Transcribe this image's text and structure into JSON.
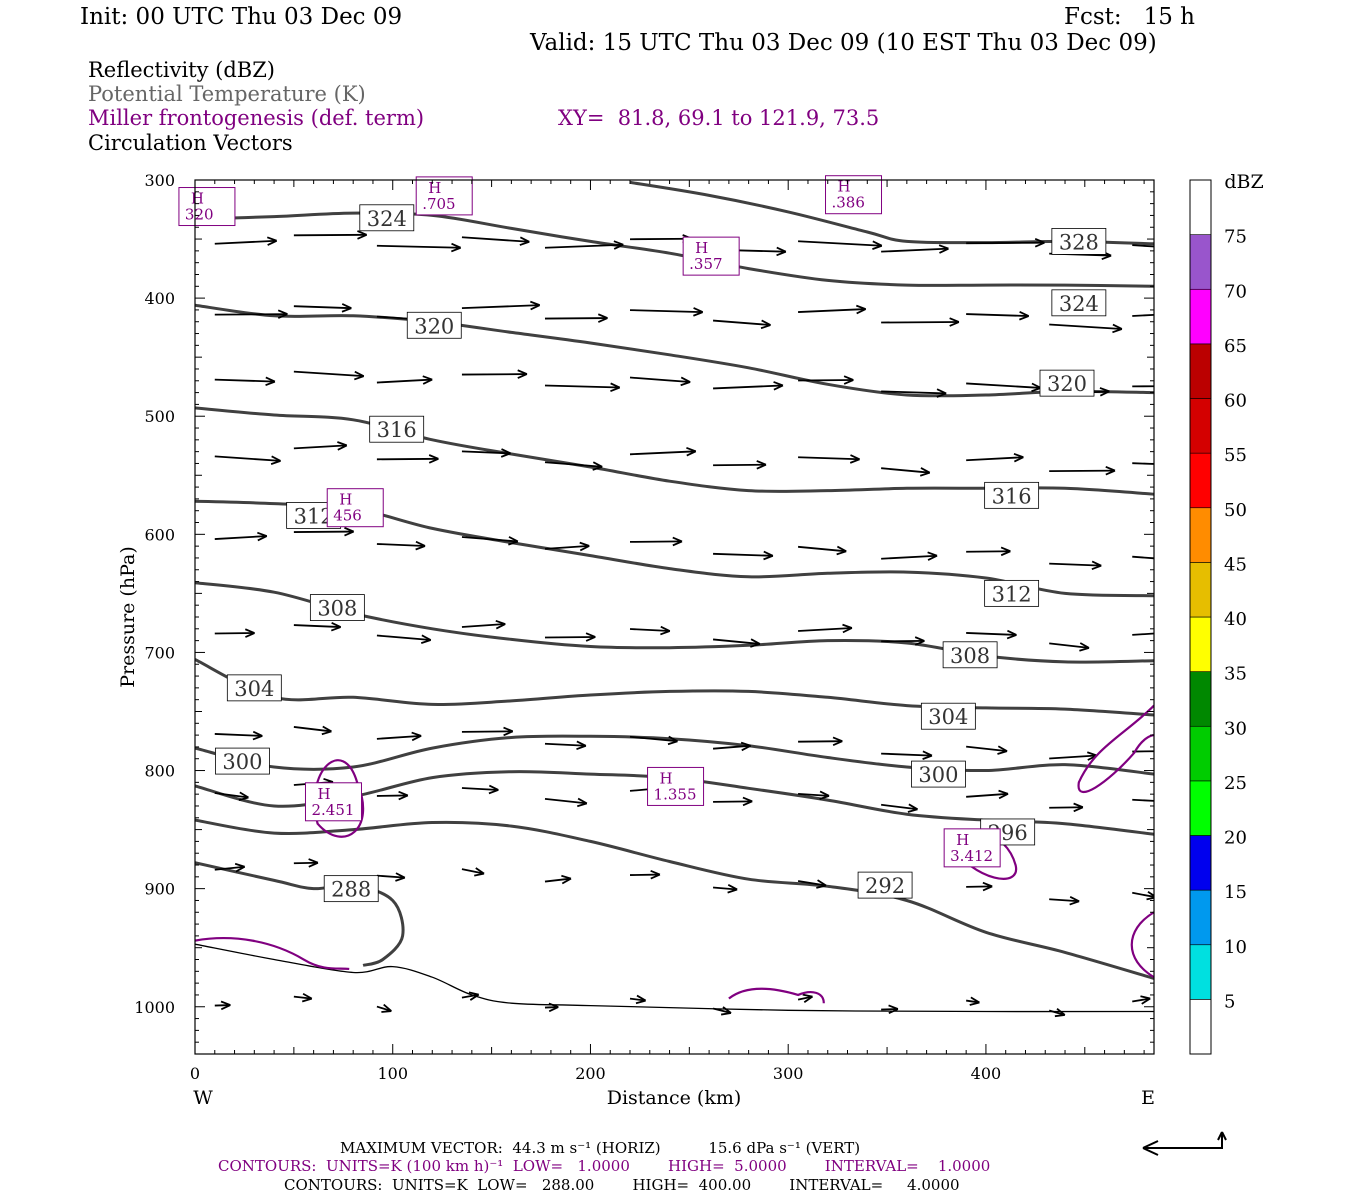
{
  "header": {
    "init": "Init: 00 UTC Thu 03 Dec 09",
    "fcst": "Fcst:   15 h",
    "valid": "Valid: 15 UTC Thu 03 Dec 09 (10 EST Thu 03 Dec 09)"
  },
  "legend": {
    "reflectivity": "Reflectivity (dBZ)",
    "potential_temperature": "Potential Temperature (K)",
    "miller": "Miller frontogenesis (def. term)",
    "xy": "XY=  81.8, 69.1 to 121.9, 73.5",
    "circulation": "Circulation Vectors"
  },
  "footer": {
    "line1": "MAXIMUM VECTOR:  44.3 m s⁻¹ (HORIZ)          15.6 dPa s⁻¹ (VERT)",
    "line2": "CONTOURS:  UNITS=K (100 km h)⁻¹  LOW=   1.0000        HIGH=  5.0000        INTERVAL=    1.0000",
    "line3": "CONTOURS:  UNITS=K  LOW=   288.00        HIGH=  400.00        INTERVAL=     4.0000"
  },
  "colors": {
    "theta": "#404040",
    "miller": "#800080",
    "vector": "#000000"
  },
  "chart_data": {
    "type": "line",
    "subtype": "vertical cross-section",
    "xlabel": "Distance (km)",
    "ylabel": "Pressure (hPa)",
    "xlim": [
      0,
      485
    ],
    "ylim": [
      1040,
      300
    ],
    "y_inverted": true,
    "x_ticks": [
      0,
      100,
      200,
      300,
      400
    ],
    "y_ticks": [
      300,
      400,
      500,
      600,
      700,
      800,
      900,
      1000
    ],
    "x_end_labels": {
      "left": "W",
      "right": "E"
    },
    "colorbar": {
      "title": "dBZ",
      "levels": [
        5,
        10,
        15,
        20,
        25,
        30,
        35,
        40,
        45,
        50,
        55,
        60,
        65,
        70,
        75
      ],
      "colors": [
        "#00e0e0",
        "#0099ee",
        "#0000ee",
        "#00ff00",
        "#00cc00",
        "#008800",
        "#ffff00",
        "#e6be00",
        "#ff8c00",
        "#ff0000",
        "#d40000",
        "#bb0000",
        "#ff00ff",
        "#9955cc",
        "#ffffff"
      ]
    },
    "theta_series": [
      {
        "name": "324",
        "x": [
          0,
          40,
          80,
          120,
          160,
          200,
          240,
          280,
          320,
          360,
          400,
          440,
          485
        ],
        "values": [
          333,
          331,
          328,
          330,
          341,
          352,
          362,
          375,
          385,
          389,
          389,
          389,
          390
        ]
      },
      {
        "name": "328",
        "x": [
          220,
          260,
          300,
          340,
          360,
          400,
          440,
          485
        ],
        "values": [
          302,
          313,
          327,
          344,
          352,
          353,
          352,
          354
        ]
      },
      {
        "name": "320",
        "x": [
          0,
          40,
          80,
          120,
          160,
          200,
          240,
          280,
          320,
          360,
          400,
          440,
          485
        ],
        "values": [
          406,
          415,
          415,
          420,
          429,
          438,
          448,
          459,
          473,
          482,
          482,
          479,
          480
        ]
      },
      {
        "name": "316",
        "x": [
          0,
          40,
          80,
          120,
          160,
          200,
          240,
          280,
          320,
          360,
          400,
          440,
          485
        ],
        "values": [
          493,
          499,
          503,
          520,
          532,
          543,
          555,
          563,
          563,
          561,
          561,
          561,
          566
        ]
      },
      {
        "name": "312",
        "x": [
          0,
          40,
          80,
          120,
          160,
          200,
          240,
          280,
          320,
          360,
          400,
          440,
          485
        ],
        "values": [
          572,
          574,
          578,
          595,
          607,
          618,
          629,
          636,
          633,
          632,
          637,
          650,
          652
        ]
      },
      {
        "name": "308",
        "x": [
          0,
          40,
          80,
          120,
          160,
          200,
          240,
          280,
          320,
          360,
          400,
          440,
          485
        ],
        "values": [
          641,
          649,
          667,
          680,
          689,
          695,
          696,
          694,
          690,
          692,
          703,
          708,
          707
        ]
      },
      {
        "name": "304",
        "x": [
          0,
          40,
          80,
          120,
          160,
          200,
          240,
          280,
          320,
          360,
          400,
          440,
          485
        ],
        "values": [
          706,
          738,
          738,
          744,
          741,
          736,
          733,
          733,
          738,
          745,
          747,
          748,
          753
        ]
      },
      {
        "name": "300",
        "x": [
          0,
          40,
          80,
          120,
          160,
          200,
          240,
          280,
          320,
          360,
          400,
          440,
          485
        ],
        "values": [
          781,
          797,
          797,
          781,
          772,
          771,
          773,
          779,
          789,
          797,
          800,
          795,
          803
        ]
      },
      {
        "name": "296",
        "x": [
          0,
          40,
          80,
          120,
          160,
          200,
          240,
          280,
          320,
          360,
          400,
          440,
          485
        ],
        "values": [
          813,
          830,
          822,
          806,
          801,
          803,
          806,
          815,
          825,
          837,
          842,
          845,
          854
        ]
      },
      {
        "name": "292",
        "x": [
          0,
          40,
          80,
          120,
          160,
          200,
          240,
          280,
          320,
          360,
          400,
          440,
          485
        ],
        "values": [
          842,
          853,
          850,
          844,
          847,
          860,
          877,
          892,
          898,
          910,
          937,
          954,
          976
        ]
      },
      {
        "name": "288",
        "x": [
          0,
          40,
          60,
          80,
          100,
          105,
          95,
          85
        ],
        "values": [
          878,
          893,
          900,
          897,
          910,
          940,
          960,
          965
        ]
      }
    ],
    "miller_highs": [
      {
        "label": "H",
        "value": ".705",
        "x": 123,
        "y": 316
      },
      {
        "label": "H",
        "value": ".386",
        "x": 330,
        "y": 315
      },
      {
        "label": "H",
        "value": "320",
        "x": 3,
        "y": 325
      },
      {
        "label": "H",
        "value": ".357",
        "x": 258,
        "y": 367
      },
      {
        "label": "H",
        "value": "456",
        "x": 78,
        "y": 580
      },
      {
        "label": "H",
        "value": "2.451",
        "x": 67,
        "y": 829
      },
      {
        "label": "H",
        "value": "1.355",
        "x": 240,
        "y": 816
      },
      {
        "label": "H",
        "value": "3.412",
        "x": 390,
        "y": 868
      }
    ],
    "surface_pressure": {
      "x": [
        0,
        40,
        80,
        100,
        120,
        140,
        160,
        200,
        300,
        400,
        485
      ],
      "values": [
        947,
        960,
        971,
        966,
        975,
        990,
        997,
        999,
        1003,
        1004,
        1004
      ]
    }
  }
}
